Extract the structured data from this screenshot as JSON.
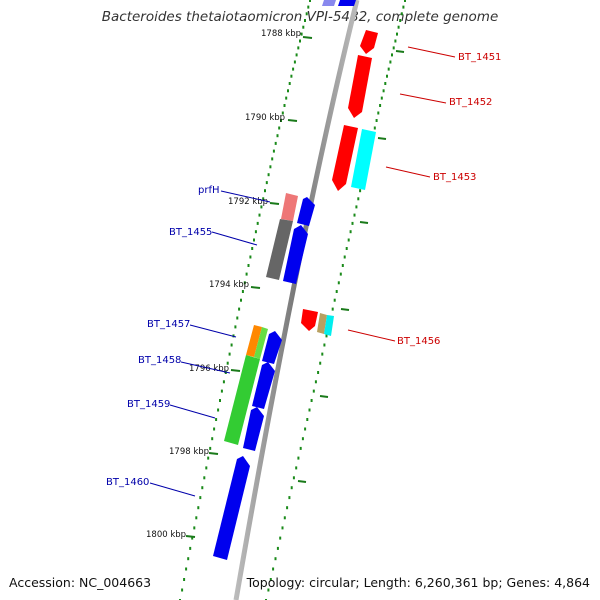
{
  "title": "Bacteroides thetaiotaomicron VPI-5482, complete genome",
  "accession": "Accession: NC_004663",
  "topology": "Topology: circular; Length: 6,260,361 bp; Genes: 4,864",
  "colors": {
    "backbone": "#888888",
    "dots": "#1a8a1a",
    "minus_label": "#0000aa",
    "plus_label": "#cc0000",
    "minus_gene": "#0000ee",
    "plus_gene": "#ff0000",
    "rna": "#00ffff",
    "pseudo": "#666666",
    "feature": "#33cc33",
    "other": "#ff8800",
    "prfH": "#ee7777"
  },
  "ticks": [
    {
      "label": "1788 kbp"
    },
    {
      "label": "1790 kbp"
    },
    {
      "label": "1792 kbp"
    },
    {
      "label": "1794 kbp"
    },
    {
      "label": "1796 kbp"
    },
    {
      "label": "1798 kbp"
    },
    {
      "label": "1800 kbp"
    }
  ],
  "genes_minus": [
    {
      "label": "prfH"
    },
    {
      "label": "BT_1455"
    },
    {
      "label": "BT_1457"
    },
    {
      "label": "BT_1458"
    },
    {
      "label": "BT_1459"
    },
    {
      "label": "BT_1460"
    }
  ],
  "genes_plus": [
    {
      "label": "BT_1451"
    },
    {
      "label": "BT_1452"
    },
    {
      "label": "BT_1453"
    },
    {
      "label": "BT_1456"
    }
  ]
}
